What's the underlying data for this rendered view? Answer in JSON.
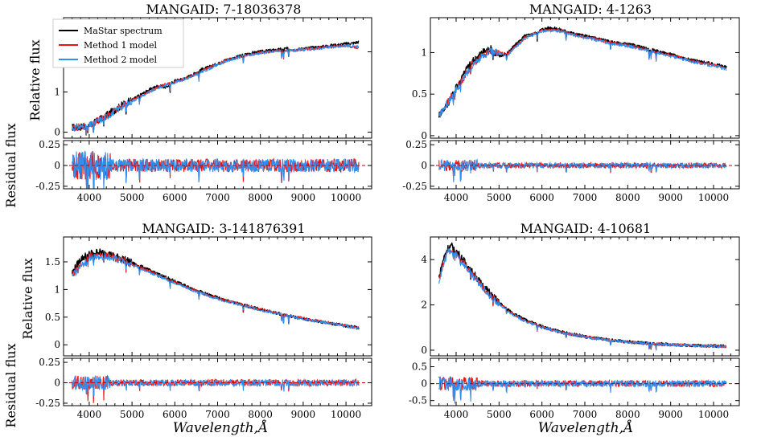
{
  "figure": {
    "shared_residual_label": "Residual flux",
    "xlabel": "Wavelength,Å"
  },
  "legend": {
    "entries": [
      {
        "label": "MaStar spectrum",
        "color": "#000000"
      },
      {
        "label": "Method 1 model",
        "color": "#ee1111"
      },
      {
        "label": "Method 2 model",
        "color": "#2f8ff0"
      }
    ]
  },
  "chart_data": [
    {
      "type": "line",
      "title": "MANGAID: 7-18036378",
      "xlabel": "",
      "ylabel": "Relative flux",
      "xlim": [
        3400,
        10600
      ],
      "ylim": [
        -0.15,
        2.85
      ],
      "xticks": [
        4000,
        5000,
        6000,
        7000,
        8000,
        9000,
        10000
      ],
      "yticks": [
        0,
        1,
        2
      ],
      "series": [
        {
          "name": "MaStar spectrum",
          "x": [
            3600,
            3800,
            4000,
            4200,
            4400,
            4600,
            4800,
            5000,
            5200,
            5400,
            5600,
            5800,
            6000,
            6200,
            6400,
            6600,
            6800,
            7000,
            7200,
            7400,
            7600,
            7800,
            8000,
            8200,
            8400,
            8600,
            8800,
            9000,
            9200,
            9400,
            9600,
            9800,
            10000,
            10200,
            10300
          ],
          "values": [
            0.12,
            0.13,
            0.18,
            0.28,
            0.42,
            0.55,
            0.7,
            0.8,
            0.93,
            1.05,
            1.15,
            1.12,
            1.28,
            1.32,
            1.42,
            1.55,
            1.62,
            1.7,
            1.8,
            1.85,
            1.92,
            1.97,
            2.0,
            2.03,
            2.05,
            2.08,
            2.05,
            2.08,
            2.1,
            2.12,
            2.15,
            2.17,
            2.2,
            2.22,
            2.25
          ]
        },
        {
          "name": "Method 1 model",
          "x": [
            3600,
            4000,
            4400,
            4800,
            5200,
            5600,
            6000,
            6400,
            6800,
            7200,
            7600,
            8000,
            8400,
            8800,
            9200,
            9600,
            10000,
            10300
          ],
          "values": [
            0.1,
            0.17,
            0.4,
            0.68,
            0.9,
            1.12,
            1.25,
            1.4,
            1.6,
            1.78,
            1.9,
            1.98,
            2.03,
            2.04,
            2.08,
            2.12,
            2.16,
            2.1
          ]
        },
        {
          "name": "Method 2 model",
          "x": [
            3600,
            4000,
            4400,
            4800,
            5200,
            5600,
            6000,
            6400,
            6800,
            7200,
            7600,
            8000,
            8400,
            8800,
            9200,
            9600,
            10000,
            10300
          ],
          "values": [
            0.1,
            0.16,
            0.38,
            0.66,
            0.88,
            1.1,
            1.24,
            1.38,
            1.58,
            1.77,
            1.89,
            1.97,
            2.02,
            2.03,
            2.07,
            2.11,
            2.15,
            2.12
          ]
        }
      ],
      "residual": {
        "ylabel": "Residual flux",
        "ylim": [
          -0.28,
          0.3
        ],
        "yticks": [
          -0.25,
          0.0,
          0.25
        ],
        "amplitude": 0.1,
        "zero_line_color": "#cc0000"
      }
    },
    {
      "type": "line",
      "title": "MANGAID: 4-1263",
      "xlabel": "",
      "ylabel": "",
      "xlim": [
        3400,
        10600
      ],
      "ylim": [
        -0.03,
        1.42
      ],
      "xticks": [
        4000,
        5000,
        6000,
        7000,
        8000,
        9000,
        10000
      ],
      "yticks": [
        0.0,
        0.5,
        1.0
      ],
      "series": [
        {
          "name": "MaStar spectrum",
          "x": [
            3600,
            3800,
            4000,
            4200,
            4400,
            4600,
            4800,
            5000,
            5200,
            5400,
            5600,
            5800,
            6000,
            6200,
            6400,
            6600,
            6800,
            7000,
            7200,
            7400,
            7600,
            7800,
            8000,
            8200,
            8400,
            8600,
            8800,
            9000,
            9200,
            9400,
            9600,
            9800,
            10000,
            10200,
            10300
          ],
          "values": [
            0.25,
            0.38,
            0.58,
            0.78,
            0.9,
            1.0,
            1.05,
            0.95,
            1.0,
            1.1,
            1.2,
            1.22,
            1.28,
            1.3,
            1.28,
            1.25,
            1.22,
            1.2,
            1.18,
            1.16,
            1.13,
            1.11,
            1.1,
            1.08,
            1.05,
            1.03,
            1.0,
            0.98,
            0.95,
            0.92,
            0.9,
            0.88,
            0.86,
            0.84,
            0.82
          ]
        },
        {
          "name": "Method 1 model",
          "x": [
            3600,
            4000,
            4400,
            4800,
            5200,
            5600,
            6000,
            6400,
            6800,
            7200,
            7600,
            8000,
            8400,
            8800,
            9200,
            9600,
            10000,
            10300
          ],
          "values": [
            0.24,
            0.56,
            0.88,
            1.03,
            0.98,
            1.18,
            1.27,
            1.27,
            1.21,
            1.17,
            1.12,
            1.09,
            1.04,
            0.99,
            0.94,
            0.89,
            0.85,
            0.81
          ]
        },
        {
          "name": "Method 2 model",
          "x": [
            3600,
            4000,
            4400,
            4800,
            5200,
            5600,
            6000,
            6400,
            6800,
            7200,
            7600,
            8000,
            8400,
            8800,
            9200,
            9600,
            10000,
            10300
          ],
          "values": [
            0.23,
            0.55,
            0.87,
            1.02,
            0.97,
            1.17,
            1.26,
            1.26,
            1.2,
            1.16,
            1.11,
            1.08,
            1.03,
            0.98,
            0.93,
            0.88,
            0.84,
            0.8
          ]
        }
      ],
      "residual": {
        "ylabel": "",
        "ylim": [
          -0.28,
          0.3
        ],
        "yticks": [
          -0.25,
          0.0,
          0.25
        ],
        "amplitude": 0.04,
        "zero_line_color": "#cc0000"
      }
    },
    {
      "type": "line",
      "title": "MANGAID: 3-141876391",
      "xlabel": "Wavelength,Å",
      "ylabel": "Relative flux",
      "xlim": [
        3400,
        10600
      ],
      "ylim": [
        -0.2,
        1.95
      ],
      "xticks": [
        4000,
        5000,
        6000,
        7000,
        8000,
        9000,
        10000
      ],
      "yticks": [
        0.0,
        0.5,
        1.0,
        1.5
      ],
      "series": [
        {
          "name": "MaStar spectrum",
          "x": [
            3600,
            3800,
            4000,
            4200,
            4400,
            4600,
            4800,
            5000,
            5200,
            5400,
            5600,
            5800,
            6000,
            6200,
            6400,
            6600,
            6800,
            7000,
            7200,
            7400,
            7600,
            7800,
            8000,
            8200,
            8400,
            8600,
            8800,
            9000,
            9200,
            9400,
            9600,
            9800,
            10000,
            10200,
            10300
          ],
          "values": [
            1.3,
            1.55,
            1.65,
            1.68,
            1.66,
            1.6,
            1.55,
            1.48,
            1.42,
            1.35,
            1.28,
            1.22,
            1.15,
            1.08,
            1.02,
            0.96,
            0.9,
            0.85,
            0.8,
            0.76,
            0.72,
            0.68,
            0.64,
            0.6,
            0.57,
            0.54,
            0.5,
            0.47,
            0.44,
            0.42,
            0.39,
            0.37,
            0.34,
            0.32,
            0.3
          ]
        },
        {
          "name": "Method 1 model",
          "x": [
            3600,
            4000,
            4400,
            4800,
            5200,
            5600,
            6000,
            6400,
            6800,
            7200,
            7600,
            8000,
            8400,
            8800,
            9200,
            9600,
            10000,
            10300
          ],
          "values": [
            1.25,
            1.6,
            1.62,
            1.52,
            1.4,
            1.26,
            1.13,
            1.0,
            0.89,
            0.8,
            0.72,
            0.64,
            0.57,
            0.51,
            0.45,
            0.4,
            0.35,
            0.31
          ]
        },
        {
          "name": "Method 2 model",
          "x": [
            3600,
            4000,
            4400,
            4800,
            5200,
            5600,
            6000,
            6400,
            6800,
            7200,
            7600,
            8000,
            8400,
            8800,
            9200,
            9600,
            10000,
            10300
          ],
          "values": [
            1.24,
            1.58,
            1.6,
            1.5,
            1.38,
            1.25,
            1.12,
            0.99,
            0.88,
            0.79,
            0.71,
            0.63,
            0.56,
            0.5,
            0.44,
            0.39,
            0.34,
            0.3
          ]
        }
      ],
      "residual": {
        "ylabel": "Residual flux",
        "ylim": [
          -0.28,
          0.3
        ],
        "yticks": [
          -0.25,
          0.0,
          0.25
        ],
        "amplitude": 0.05,
        "zero_line_color": "#cc0000"
      }
    },
    {
      "type": "line",
      "title": "MANGAID: 4-10681",
      "xlabel": "Wavelength,Å",
      "ylabel": "",
      "xlim": [
        3400,
        10600
      ],
      "ylim": [
        -0.25,
        5.0
      ],
      "xticks": [
        4000,
        5000,
        6000,
        7000,
        8000,
        9000,
        10000
      ],
      "yticks": [
        0,
        2,
        4
      ],
      "series": [
        {
          "name": "MaStar spectrum",
          "x": [
            3600,
            3700,
            3800,
            3900,
            4000,
            4200,
            4400,
            4600,
            4800,
            5000,
            5200,
            5400,
            5600,
            5800,
            6000,
            6200,
            6400,
            6600,
            6800,
            7000,
            7200,
            7400,
            7600,
            7800,
            8000,
            8200,
            8400,
            8600,
            8800,
            9000,
            9200,
            9400,
            9600,
            9800,
            10000,
            10200,
            10300
          ],
          "values": [
            3.2,
            4.0,
            4.5,
            4.6,
            4.4,
            3.9,
            3.4,
            2.9,
            2.5,
            2.1,
            1.8,
            1.55,
            1.35,
            1.2,
            1.05,
            0.93,
            0.83,
            0.75,
            0.68,
            0.6,
            0.54,
            0.49,
            0.45,
            0.41,
            0.37,
            0.34,
            0.31,
            0.29,
            0.27,
            0.25,
            0.23,
            0.22,
            0.21,
            0.2,
            0.19,
            0.18,
            0.18
          ]
        },
        {
          "name": "Method 1 model",
          "x": [
            3600,
            3800,
            4000,
            4400,
            4800,
            5200,
            5600,
            6000,
            6400,
            6800,
            7200,
            7600,
            8000,
            8400,
            8800,
            9200,
            9600,
            10000,
            10300
          ],
          "values": [
            3.1,
            4.4,
            4.3,
            3.3,
            2.4,
            1.75,
            1.3,
            1.02,
            0.81,
            0.66,
            0.53,
            0.44,
            0.36,
            0.3,
            0.26,
            0.23,
            0.2,
            0.18,
            0.17
          ]
        },
        {
          "name": "Method 2 model",
          "x": [
            3600,
            3800,
            4000,
            4400,
            4800,
            5200,
            5600,
            6000,
            6400,
            6800,
            7200,
            7600,
            8000,
            8400,
            8800,
            9200,
            9600,
            10000,
            10300
          ],
          "values": [
            3.05,
            4.35,
            4.25,
            3.25,
            2.35,
            1.72,
            1.28,
            1.0,
            0.8,
            0.65,
            0.52,
            0.43,
            0.35,
            0.29,
            0.25,
            0.22,
            0.19,
            0.17,
            0.16
          ]
        }
      ],
      "residual": {
        "ylabel": "",
        "ylim": [
          -0.65,
          0.75
        ],
        "yticks": [
          -0.5,
          0.0,
          0.5
        ],
        "amplitude": 0.12,
        "zero_line_color": "#cc0000"
      }
    }
  ]
}
